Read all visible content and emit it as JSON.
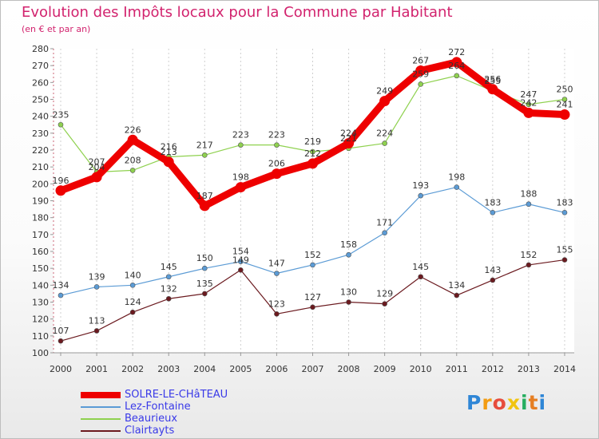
{
  "chart_data": {
    "type": "line",
    "title": "Evolution des Impôts locaux pour la Commune par Habitant",
    "subtitle": "(en € et par an)",
    "xlabel": "",
    "ylabel": "",
    "ylim": [
      100,
      280
    ],
    "y_ticks": [
      100,
      110,
      120,
      130,
      140,
      150,
      160,
      170,
      180,
      190,
      200,
      210,
      220,
      230,
      240,
      250,
      260,
      270,
      280
    ],
    "x": [
      "2000",
      "2001",
      "2002",
      "2003",
      "2004",
      "2005",
      "2006",
      "2007",
      "2008",
      "2009",
      "2010",
      "2011",
      "2012",
      "2013",
      "2014"
    ],
    "grid": "vertical dashed",
    "legend_position": "bottom-left",
    "series": [
      {
        "name": "Clairtayts",
        "color": "#6b1a1f",
        "values": [
          107,
          113,
          124,
          132,
          135,
          149,
          123,
          127,
          130,
          129,
          145,
          134,
          143,
          152,
          155
        ],
        "labels": [
          "107",
          "113",
          "124",
          "132",
          "135",
          "149",
          "123",
          "127",
          "130",
          "129",
          "145",
          "134",
          "143",
          "152",
          "155"
        ]
      },
      {
        "name": "Lez-Fontaine",
        "color": "#5b9bd5",
        "values": [
          134,
          139,
          140,
          145,
          150,
          154,
          147,
          152,
          158,
          171,
          193,
          198,
          183,
          188,
          183
        ],
        "labels": [
          "134",
          "139",
          "140",
          "145",
          "150",
          "154",
          "147",
          "152",
          "158",
          "171",
          "193",
          "198",
          "183",
          "188",
          "183"
        ]
      },
      {
        "name": "Beaurieux",
        "color": "#8fd14f",
        "values": [
          235,
          207,
          208,
          216,
          217,
          223,
          223,
          219,
          221,
          224,
          259,
          264,
          255,
          247,
          250
        ],
        "labels": [
          "235",
          "207",
          "208",
          "216",
          "217",
          "223",
          "223",
          "219",
          "221",
          "224",
          "259",
          "264",
          "255",
          "247",
          "250"
        ]
      },
      {
        "name": "SOLRE-LE-CHâTEAU",
        "color": "#ee0000",
        "values": [
          196,
          204,
          226,
          213,
          187,
          198,
          206,
          212,
          224,
          249,
          267,
          272,
          256,
          242,
          241
        ],
        "labels": [
          "196",
          "204",
          "226",
          "213",
          "187",
          "198",
          "206",
          "212",
          "224",
          "249",
          "267",
          "272",
          "256",
          "242",
          "241"
        ]
      }
    ]
  },
  "legend": {
    "items": [
      {
        "label": "SOLRE-LE-CHâTEAU",
        "color": "#ee0000"
      },
      {
        "label": "Lez-Fontaine",
        "color": "#5b9bd5"
      },
      {
        "label": "Beaurieux",
        "color": "#8fd14f"
      },
      {
        "label": "Clairtayts",
        "color": "#6b1a1f"
      }
    ]
  },
  "brand": {
    "letters": [
      "P",
      "r",
      "o",
      "x",
      "i",
      "t",
      "i"
    ]
  }
}
